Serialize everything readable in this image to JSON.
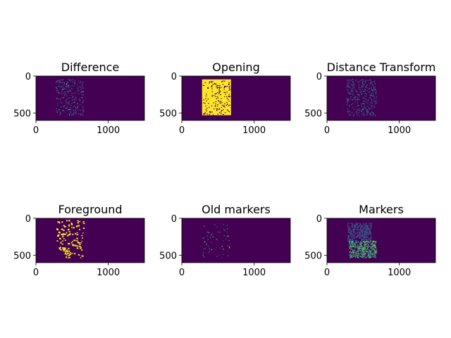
{
  "figure": {
    "background": "#ffffff",
    "colormap": "viridis",
    "colors": {
      "background_value": "#440154",
      "low": "#3b528b",
      "mid": "#21908d",
      "high": "#5ec962",
      "max": "#fde725"
    }
  },
  "chart_data": [
    {
      "type": "heatmap",
      "title": "Difference",
      "xlim": [
        0,
        1500
      ],
      "ylim": [
        600,
        0
      ],
      "xticks": [
        "0",
        "1000"
      ],
      "yticks": [
        "0",
        "500"
      ],
      "content": "sparse dark-blue/teal speckle texture over x≈270–660, y≈40–530 on dark purple"
    },
    {
      "type": "heatmap",
      "title": "Opening",
      "xlim": [
        0,
        1500
      ],
      "ylim": [
        600,
        0
      ],
      "xticks": [
        "0",
        "1000"
      ],
      "yticks": [
        "0",
        "500"
      ],
      "content": "dense yellow block over x≈270–680, y≈40–530 with dark holes on dark purple"
    },
    {
      "type": "heatmap",
      "title": "Distance Transform",
      "xlim": [
        0,
        1500
      ],
      "ylim": [
        600,
        0
      ],
      "xticks": [
        "0",
        "1000"
      ],
      "yticks": [
        "0",
        "500"
      ],
      "content": "blue/teal speckle texture over x≈270–680, y≈40–530 on dark purple"
    },
    {
      "type": "heatmap",
      "title": "Foreground",
      "xlim": [
        0,
        1500
      ],
      "ylim": [
        600,
        0
      ],
      "xticks": [
        "0",
        "1000"
      ],
      "yticks": [
        "0",
        "500"
      ],
      "content": "scattered yellow blobs over x≈270–660, y≈20–530 on dark purple"
    },
    {
      "type": "heatmap",
      "title": "Old markers",
      "xlim": [
        0,
        1500
      ],
      "ylim": [
        600,
        0
      ],
      "xticks": [
        "0",
        "1000"
      ],
      "yticks": [
        "0",
        "500"
      ],
      "content": "small scattered blue/teal/green markers over x≈270–660, y≈60–530 on dark purple"
    },
    {
      "type": "heatmap",
      "title": "Markers",
      "xlim": [
        0,
        1500
      ],
      "ylim": [
        600,
        0
      ],
      "xticks": [
        "0",
        "1000"
      ],
      "yticks": [
        "0",
        "500"
      ],
      "content": "blue region top with green/teal region bottom over x≈270–700, y≈60–530 on dark purple"
    }
  ]
}
